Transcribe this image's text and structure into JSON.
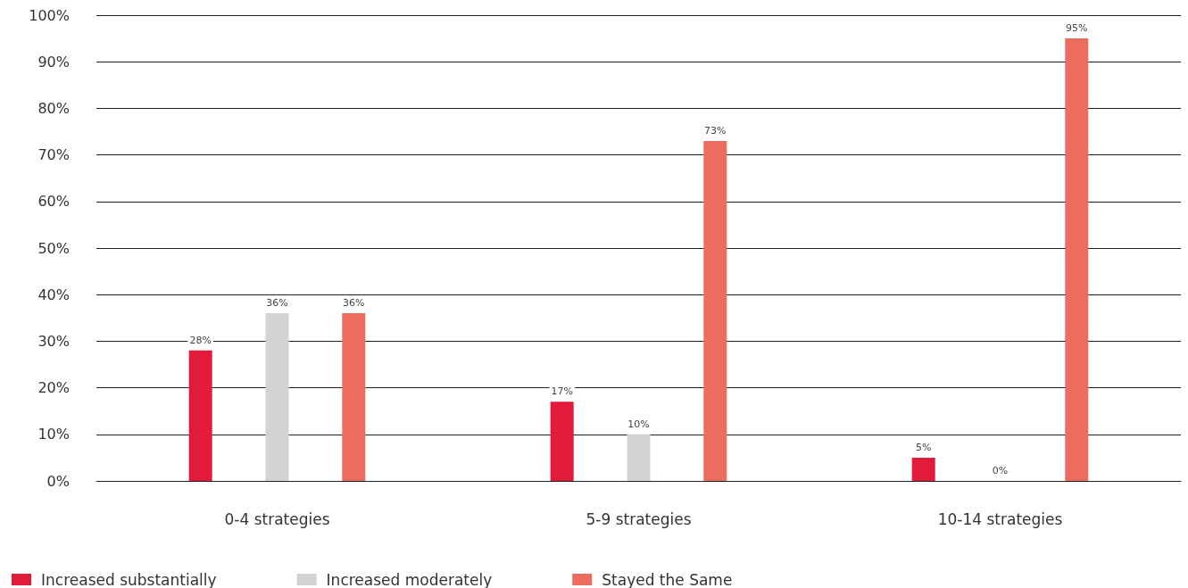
{
  "chart_data": {
    "type": "bar",
    "categories": [
      "0-4 strategies",
      "5-9 strategies",
      "10-14 strategies"
    ],
    "series": [
      {
        "name": "Increased substantially",
        "color": "#e31b3b",
        "values": [
          28,
          17,
          5
        ],
        "value_labels": [
          "28%",
          "17%",
          "5%"
        ]
      },
      {
        "name": "Increased moderately",
        "color": "#d3d3d3",
        "values": [
          36,
          10,
          0
        ],
        "value_labels": [
          "36%",
          "10%",
          "0%"
        ]
      },
      {
        "name": "Stayed the Same",
        "color": "#ec6d60",
        "values": [
          36,
          73,
          95
        ],
        "value_labels": [
          "36%",
          "73%",
          "95%"
        ]
      }
    ],
    "ylim": [
      0,
      100
    ],
    "yticks": [
      {
        "value": 0,
        "label": "0%"
      },
      {
        "value": 10,
        "label": "10%"
      },
      {
        "value": 20,
        "label": "20%"
      },
      {
        "value": 30,
        "label": "30%"
      },
      {
        "value": 40,
        "label": "40%"
      },
      {
        "value": 50,
        "label": "50%"
      },
      {
        "value": 60,
        "label": "60%"
      },
      {
        "value": 70,
        "label": "70%"
      },
      {
        "value": 80,
        "label": "80%"
      },
      {
        "value": 90,
        "label": "90%"
      },
      {
        "value": 100,
        "label": "100%"
      }
    ],
    "grid": "y",
    "legend": "bottom left"
  }
}
